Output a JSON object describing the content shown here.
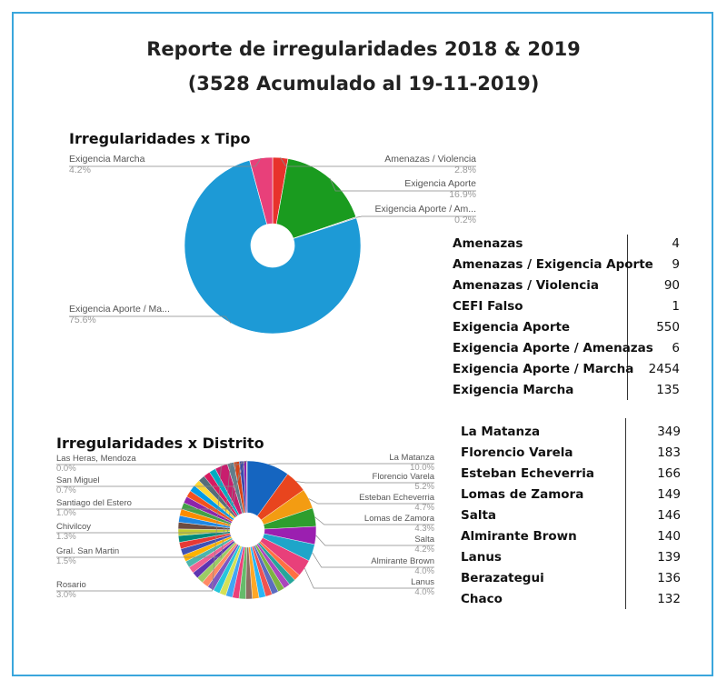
{
  "header": {
    "title": "Reporte de irregularidades 2018 & 2019",
    "subtitle": "(3528 Acumulado al 19-11-2019)"
  },
  "chart_data": [
    {
      "type": "pie",
      "title": "Irregularidades x Tipo",
      "slices": [
        {
          "label": "Amenazas / Violencia",
          "pct_label": "2.8%",
          "value": 2.8,
          "color": "#e8322c"
        },
        {
          "label": "Exigencia Aporte",
          "pct_label": "16.9%",
          "value": 16.9,
          "color": "#1a9b1f"
        },
        {
          "label": "Exigencia Aporte / Am...",
          "pct_label": "0.2%",
          "value": 0.2,
          "color": "#999999"
        },
        {
          "label": "Exigencia Aporte / Ma...",
          "pct_label": "75.6%",
          "value": 75.6,
          "color": "#1d9ad6"
        },
        {
          "label": "Exigencia Marcha",
          "pct_label": "4.2%",
          "value": 4.2,
          "color": "#e8407a"
        }
      ],
      "donut": true,
      "table": [
        {
          "label": "Amenazas",
          "value": "4"
        },
        {
          "label": "Amenazas / Exigencia Aporte",
          "value": "9"
        },
        {
          "label": "Amenazas / Violencia",
          "value": "90"
        },
        {
          "label": "CEFI Falso",
          "value": "1"
        },
        {
          "label": "Exigencia Aporte",
          "value": "550"
        },
        {
          "label": "Exigencia Aporte / Amenazas",
          "value": "6"
        },
        {
          "label": "Exigencia Aporte / Marcha",
          "value": "2454"
        },
        {
          "label": "Exigencia Marcha",
          "value": "135"
        }
      ]
    },
    {
      "type": "pie",
      "title": "Irregularidades x Distrito",
      "donut": true,
      "labeled_slices": [
        {
          "label": "La Matanza",
          "pct_label": "10.0%",
          "value": 10.0,
          "color": "#1565c0"
        },
        {
          "label": "Florencio Varela",
          "pct_label": "5.2%",
          "value": 5.2,
          "color": "#e8451e"
        },
        {
          "label": "Esteban Echeverria",
          "pct_label": "4.7%",
          "value": 4.7,
          "color": "#f39c12"
        },
        {
          "label": "Lomas de Zamora",
          "pct_label": "4.3%",
          "value": 4.3,
          "color": "#2e9e2e"
        },
        {
          "label": "Salta",
          "pct_label": "4.2%",
          "value": 4.2,
          "color": "#9b1fb0"
        },
        {
          "label": "Almirante Brown",
          "pct_label": "4.0%",
          "value": 4.0,
          "color": "#1ea5c9"
        },
        {
          "label": "Lanus",
          "pct_label": "4.0%",
          "value": 4.0,
          "color": "#e8407a"
        },
        {
          "label": "Rosario",
          "pct_label": "3.0%",
          "value": 3.0,
          "color": "#c81e6e"
        },
        {
          "label": "Gral. San Martin",
          "pct_label": "1.5%",
          "value": 1.5,
          "color": "#607d8b"
        },
        {
          "label": "Chivilcoy",
          "pct_label": "1.3%",
          "value": 1.3,
          "color": "#d84315"
        },
        {
          "label": "Santiago del Estero",
          "pct_label": "1.0%",
          "value": 1.0,
          "color": "#3949ab"
        },
        {
          "label": "San Miguel",
          "pct_label": "0.7%",
          "value": 0.7,
          "color": "#8e24aa"
        },
        {
          "label": "Las Heras, Mendoza",
          "pct_label": "0.0%",
          "value": 0.0,
          "color": "#999999"
        }
      ],
      "table": [
        {
          "label": "La Matanza",
          "value": "349"
        },
        {
          "label": "Florencio Varela",
          "value": "183"
        },
        {
          "label": "Esteban Echeverria",
          "value": "166"
        },
        {
          "label": "Lomas de Zamora",
          "value": "149"
        },
        {
          "label": "Salta",
          "value": "146"
        },
        {
          "label": "Almirante Brown",
          "value": "140"
        },
        {
          "label": "Lanus",
          "value": "139"
        },
        {
          "label": "Berazategui",
          "value": "136"
        },
        {
          "label": "Chaco",
          "value": "132"
        }
      ]
    }
  ]
}
